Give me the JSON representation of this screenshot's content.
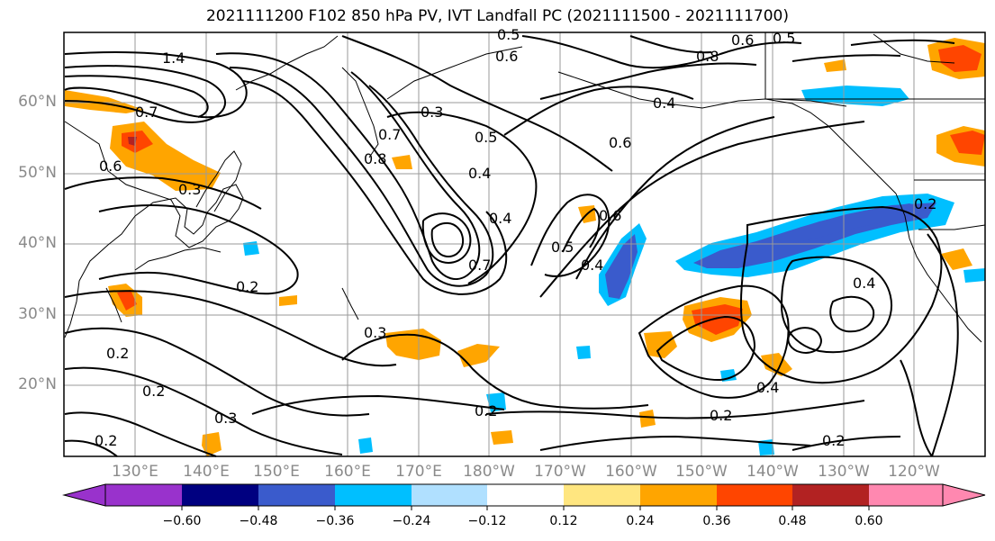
{
  "title": "2021111200 F102 850 hPa PV, IVT Landfall PC (2021111500 - 2021111700)",
  "lon_labels": [
    "130°E",
    "140°E",
    "150°E",
    "160°E",
    "170°E",
    "180°W",
    "170°W",
    "160°W",
    "150°W",
    "140°W",
    "130°W",
    "120°W"
  ],
  "lat_labels": [
    "60°N",
    "50°N",
    "40°N",
    "30°N",
    "20°N"
  ],
  "colorbar": {
    "colors": [
      "#9932cc",
      "#000080",
      "#3a5bcc",
      "#00bfff",
      "#b0e0ff",
      "#ffffff",
      "#ffe680",
      "#ffa500",
      "#ff4500",
      "#b22222",
      "#ff88b0"
    ],
    "ticks": [
      "−0.60",
      "−0.48",
      "−0.36",
      "−0.24",
      "−0.12",
      "0.12",
      "0.24",
      "0.36",
      "0.48",
      "0.60"
    ]
  },
  "contour_labels": [
    "1.4",
    "0.5",
    "0.6",
    "0.5",
    "0.6",
    "0.8",
    "0.3",
    "0.4",
    "0.5",
    "0.7",
    "0.8",
    "0.4",
    "0.6",
    "0.7",
    "0.6",
    "0.3",
    "0.6",
    "0.5",
    "0.4",
    "0.7",
    "0.4",
    "0.2",
    "0.3",
    "0.2",
    "0.3",
    "0.2",
    "0.2",
    "0.2",
    "0.2",
    "0.4",
    "0.2",
    "0.4",
    "0.2"
  ]
}
